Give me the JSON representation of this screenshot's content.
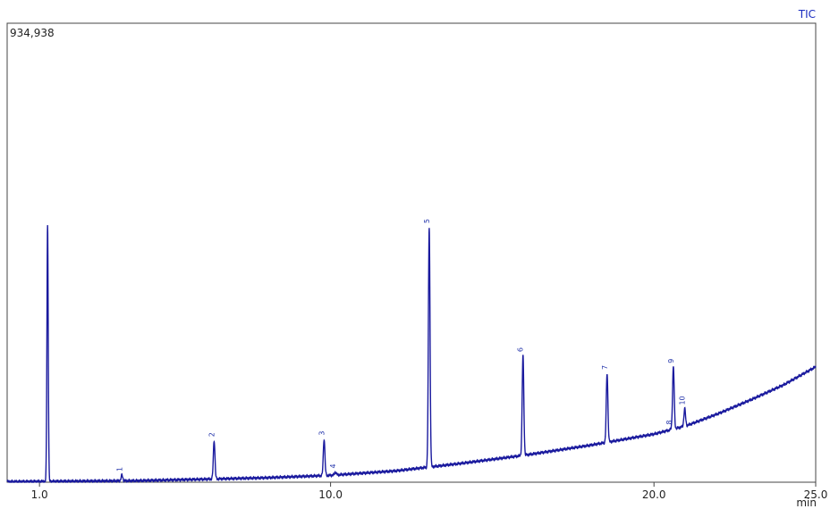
{
  "chart_data": {
    "type": "line",
    "title": "",
    "trace_label": "TIC",
    "y_max_label": "934,938",
    "xlabel": "min",
    "ylabel": "",
    "xlim": [
      0.0,
      25.0
    ],
    "ylim": [
      0,
      934938
    ],
    "x_ticks": [
      1.0,
      10.0,
      20.0,
      25.0
    ],
    "x_tick_labels": [
      "1.0",
      "10.0",
      "20.0",
      "25.0"
    ],
    "grid": false,
    "line_color": "#1a1a9e",
    "baseline": [
      [
        0.0,
        1200
      ],
      [
        4.0,
        3000
      ],
      [
        8.0,
        9000
      ],
      [
        10.0,
        14000
      ],
      [
        12.0,
        23000
      ],
      [
        14.0,
        38000
      ],
      [
        16.0,
        55000
      ],
      [
        18.0,
        75000
      ],
      [
        20.0,
        98000
      ],
      [
        21.0,
        115000
      ],
      [
        22.0,
        140000
      ],
      [
        23.0,
        168000
      ],
      [
        24.0,
        198000
      ],
      [
        25.0,
        235000
      ]
    ],
    "solvent_peak": {
      "x": 1.25,
      "y": 523000
    },
    "peaks": [
      {
        "label": "1",
        "x": 3.55,
        "y": 14500
      },
      {
        "label": "2",
        "x": 6.4,
        "y": 85000
      },
      {
        "label": "3",
        "x": 9.8,
        "y": 88000
      },
      {
        "label": "4",
        "x": 10.15,
        "y": 21000
      },
      {
        "label": "5",
        "x": 13.05,
        "y": 520000
      },
      {
        "label": "6",
        "x": 15.95,
        "y": 258000
      },
      {
        "label": "7",
        "x": 18.55,
        "y": 222000
      },
      {
        "label": "8",
        "x": 20.55,
        "y": 110000
      },
      {
        "label": "9",
        "x": 20.6,
        "y": 235000
      },
      {
        "label": "10",
        "x": 20.95,
        "y": 150000
      }
    ]
  }
}
